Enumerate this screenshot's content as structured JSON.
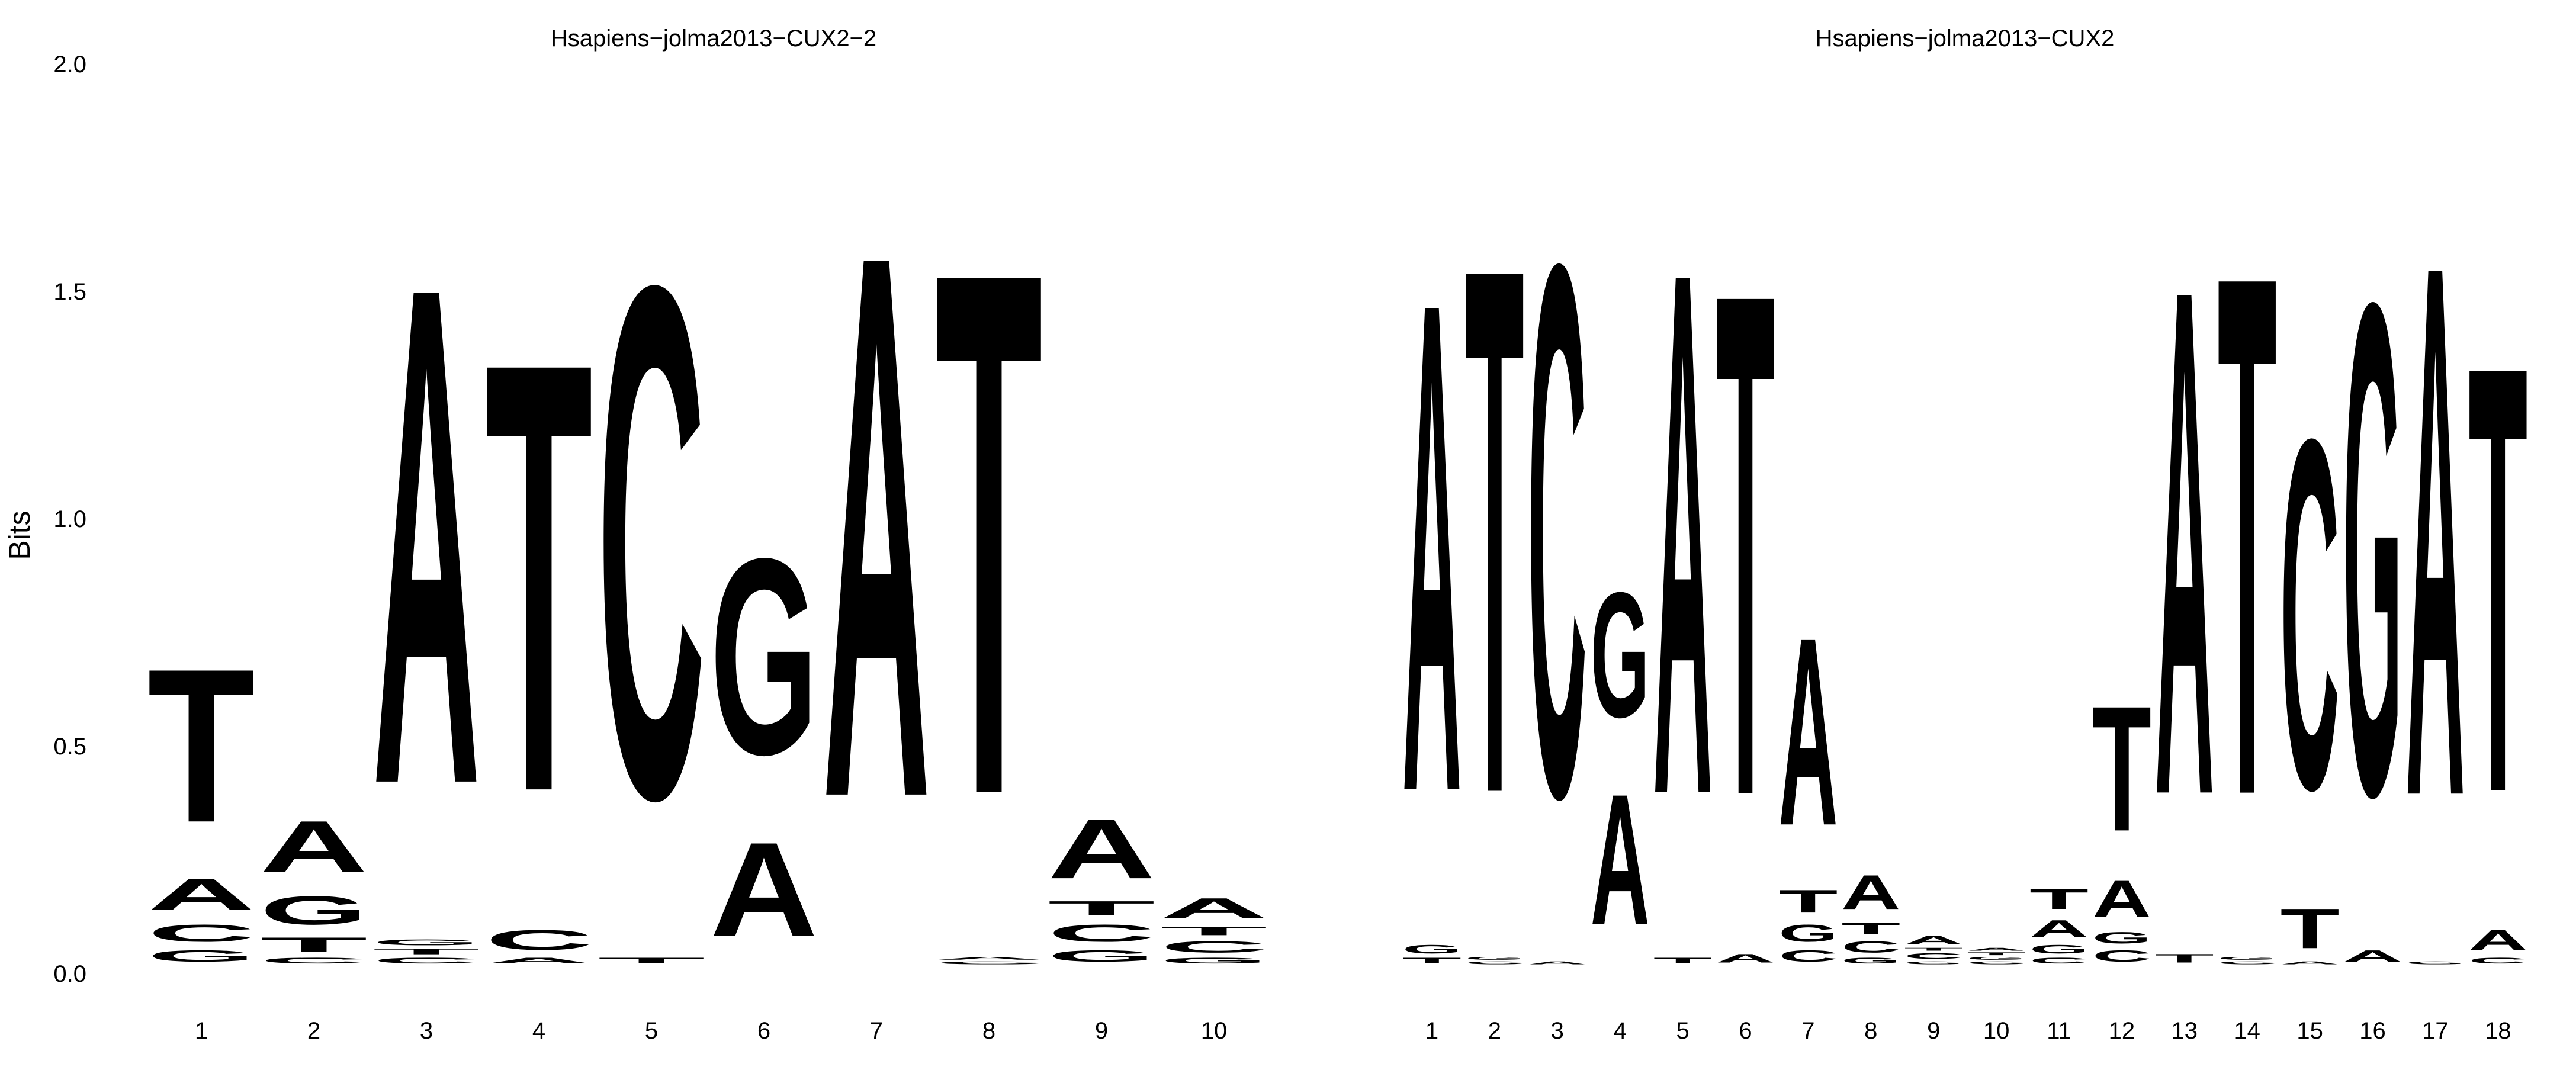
{
  "colors": {
    "A": "#109648",
    "C": "#255C99",
    "G": "#F7B32B",
    "T": "#D62839"
  },
  "ylabel": "Bits",
  "yticks": [
    "2.0",
    "1.5",
    "1.0",
    "0.5",
    "0.0"
  ],
  "chart_data": [
    {
      "type": "sequence-logo",
      "title": "Hsapiens−jolma2013−CUX2−2",
      "ylabel": "Bits",
      "ylim": [
        0,
        2
      ],
      "positions": [
        "1",
        "2",
        "3",
        "4",
        "5",
        "6",
        "7",
        "8",
        "9",
        "10"
      ],
      "columns": [
        [
          [
            "G",
            0.04
          ],
          [
            "C",
            0.06
          ],
          [
            "A",
            0.11
          ],
          [
            "T",
            0.54
          ]
        ],
        [
          [
            "C",
            0.02
          ],
          [
            "T",
            0.05
          ],
          [
            "G",
            0.1
          ],
          [
            "A",
            0.18
          ]
        ],
        [
          [
            "C",
            0.02
          ],
          [
            "T",
            0.02
          ],
          [
            "G",
            0.02
          ],
          [
            "A",
            1.75
          ]
        ],
        [
          [
            "A",
            0.02
          ],
          [
            "C",
            0.07
          ],
          [
            "T",
            1.51
          ]
        ],
        [
          [
            "T",
            0.02
          ],
          [
            "C",
            1.8
          ]
        ],
        [
          [
            "A",
            0.33
          ],
          [
            "G",
            0.69
          ]
        ],
        [
          [
            "A",
            1.91
          ]
        ],
        [
          [
            "C",
            0.01
          ],
          [
            "A",
            0.01
          ],
          [
            "T",
            1.84
          ]
        ],
        [
          [
            "G",
            0.04
          ],
          [
            "C",
            0.06
          ],
          [
            "T",
            0.05
          ],
          [
            "A",
            0.21
          ]
        ],
        [
          [
            "G",
            0.02
          ],
          [
            "C",
            0.04
          ],
          [
            "T",
            0.03
          ],
          [
            "A",
            0.07
          ]
        ]
      ]
    },
    {
      "type": "sequence-logo",
      "title": "Hsapiens−jolma2013−CUX2",
      "ylabel": "Bits",
      "ylim": [
        0,
        2
      ],
      "positions": [
        "1",
        "2",
        "3",
        "4",
        "5",
        "6",
        "7",
        "8",
        "9",
        "10",
        "11",
        "12",
        "13",
        "14",
        "15",
        "16",
        "17",
        "18"
      ],
      "columns": [
        [
          [
            "T",
            0.02
          ],
          [
            "G",
            0.03
          ],
          [
            "A",
            1.72
          ]
        ],
        [
          [
            "C",
            0.01
          ],
          [
            "G",
            0.01
          ],
          [
            "T",
            1.85
          ]
        ],
        [
          [
            "A",
            0.01
          ],
          [
            "C",
            1.87
          ]
        ],
        [
          [
            "A",
            0.46
          ],
          [
            "G",
            0.44
          ]
        ],
        [
          [
            "T",
            0.02
          ],
          [
            "A",
            1.84
          ]
        ],
        [
          [
            "A",
            0.03
          ],
          [
            "T",
            1.77
          ]
        ],
        [
          [
            "C",
            0.04
          ],
          [
            "G",
            0.06
          ],
          [
            "T",
            0.08
          ],
          [
            "A",
            0.66
          ]
        ],
        [
          [
            "G",
            0.02
          ],
          [
            "C",
            0.04
          ],
          [
            "T",
            0.04
          ],
          [
            "A",
            0.12
          ]
        ],
        [
          [
            "G",
            0.01
          ],
          [
            "C",
            0.02
          ],
          [
            "T",
            0.01
          ],
          [
            "A",
            0.03
          ]
        ],
        [
          [
            "C",
            0.01
          ],
          [
            "G",
            0.01
          ],
          [
            "T",
            0.01
          ],
          [
            "A",
            0.01
          ]
        ],
        [
          [
            "C",
            0.02
          ],
          [
            "G",
            0.03
          ],
          [
            "A",
            0.06
          ],
          [
            "T",
            0.07
          ]
        ],
        [
          [
            "C",
            0.04
          ],
          [
            "G",
            0.04
          ],
          [
            "A",
            0.13
          ],
          [
            "T",
            0.44
          ]
        ],
        [
          [
            "T",
            0.03
          ],
          [
            "A",
            1.78
          ]
        ],
        [
          [
            "C",
            0.01
          ],
          [
            "G",
            0.01
          ],
          [
            "T",
            1.83
          ]
        ],
        [
          [
            "A",
            0.01
          ],
          [
            "T",
            0.14
          ],
          [
            "C",
            1.23
          ]
        ],
        [
          [
            "A",
            0.04
          ],
          [
            "G",
            1.73
          ]
        ],
        [
          [
            "G",
            0.01
          ],
          [
            "A",
            1.87
          ]
        ],
        [
          [
            "C",
            0.02
          ],
          [
            "A",
            0.07
          ],
          [
            "T",
            1.5
          ]
        ]
      ]
    }
  ]
}
